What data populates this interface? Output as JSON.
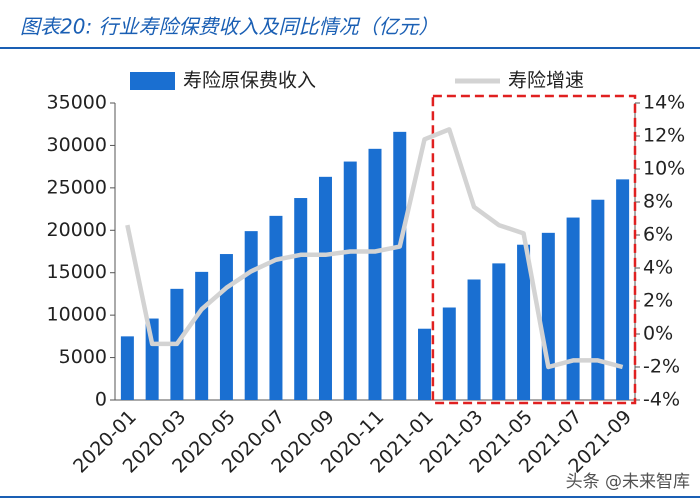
{
  "chart_data": {
    "type": "bar_line",
    "title": "图表20:  行业寿险保费收入及同比情况（亿元）",
    "categories": [
      "2020-01",
      null,
      "2020-03",
      null,
      "2020-05",
      null,
      "2020-07",
      null,
      "2020-09",
      null,
      "2020-11",
      null,
      "2021-01",
      null,
      "2021-03",
      null,
      "2021-05",
      null,
      "2021-07",
      null,
      "2021-09"
    ],
    "series": [
      {
        "name": "寿险原保费收入",
        "type": "bar",
        "color": "#1a6fd1",
        "values": [
          7500,
          9600,
          13100,
          15100,
          17200,
          19900,
          21700,
          23800,
          26300,
          28100,
          29600,
          31600,
          8400,
          10900,
          14200,
          16100,
          18300,
          19700,
          21500,
          23600,
          26000
        ]
      },
      {
        "name": "寿险增速",
        "type": "line",
        "axis": "y2",
        "color": "#d3d3d3",
        "values": [
          6.6,
          -0.6,
          -0.6,
          1.5,
          2.8,
          3.8,
          4.5,
          4.8,
          4.8,
          5.0,
          5.0,
          5.3,
          11.8,
          12.4,
          7.7,
          6.6,
          6.1,
          -2.0,
          -1.6,
          -1.6,
          -2.0
        ]
      }
    ],
    "ylim": [
      0,
      35000
    ],
    "yticks": [
      0,
      5000,
      10000,
      15000,
      20000,
      25000,
      30000,
      35000
    ],
    "y2lim": [
      -4,
      14
    ],
    "y2ticks": [
      {
        "value": -4,
        "label": "-4%"
      },
      {
        "value": -2,
        "label": "-2%"
      },
      {
        "value": 0,
        "label": "0%"
      },
      {
        "value": 2,
        "label": "2%"
      },
      {
        "value": 4,
        "label": "4%"
      },
      {
        "value": 6,
        "label": "6%"
      },
      {
        "value": 8,
        "label": "8%"
      },
      {
        "value": 10,
        "label": "10%"
      },
      {
        "value": 12,
        "label": "12%"
      },
      {
        "value": 14,
        "label": "14%"
      }
    ],
    "watermark": "头条 @未来智库"
  }
}
